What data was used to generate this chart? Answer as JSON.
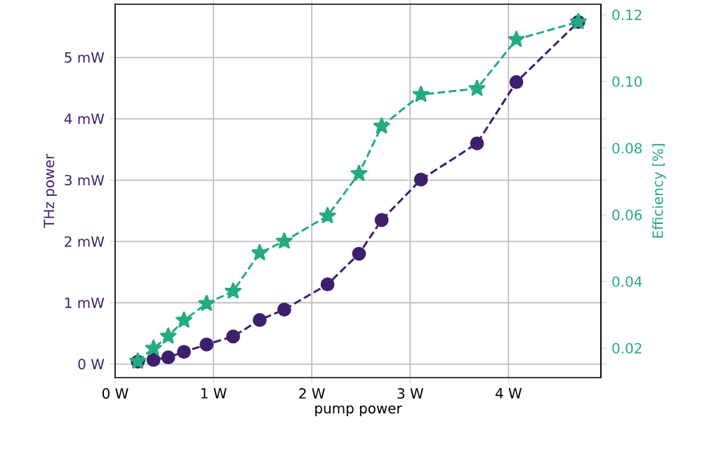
{
  "chart_data": {
    "type": "line",
    "xlabel": "pump power",
    "ylabel": "THz power",
    "y2label": "Efficiency [%]",
    "x": [
      0.23,
      0.39,
      0.54,
      0.7,
      0.93,
      1.2,
      1.47,
      1.72,
      2.16,
      2.48,
      2.71,
      3.11,
      3.68,
      4.08,
      4.71
    ],
    "series": [
      {
        "color": "#3e1f6e",
        "marker": "circle",
        "line_style": "dashed",
        "values": [
          0.04,
          0.07,
          0.11,
          0.2,
          0.32,
          0.45,
          0.72,
          0.89,
          1.3,
          1.8,
          2.35,
          3.01,
          3.6,
          4.6,
          5.58
        ]
      },
      {
        "color": "#25ab81",
        "marker": "star",
        "line_style": "dashed",
        "axis": "y2",
        "values": [
          0.0161,
          0.02,
          0.0236,
          0.0284,
          0.0334,
          0.0371,
          0.0486,
          0.0521,
          0.0597,
          0.0724,
          0.0866,
          0.0961,
          0.0979,
          0.1126,
          0.1179
        ]
      }
    ],
    "xlim": [
      0,
      4.94
    ],
    "ylim": [
      -0.22,
      5.87
    ],
    "y2lim": [
      0.0112,
      0.1232
    ],
    "xticks": [
      {
        "value": 0,
        "label": "0 W"
      },
      {
        "value": 1,
        "label": "1 W"
      },
      {
        "value": 2,
        "label": "2 W"
      },
      {
        "value": 3,
        "label": "3 W"
      },
      {
        "value": 4,
        "label": "4 W"
      }
    ],
    "yticks": [
      {
        "value": 0,
        "label": "0 W"
      },
      {
        "value": 1,
        "label": "1 mW"
      },
      {
        "value": 2,
        "label": "2 mW"
      },
      {
        "value": 3,
        "label": "3 mW"
      },
      {
        "value": 4,
        "label": "4 mW"
      },
      {
        "value": 5,
        "label": "5 mW"
      }
    ],
    "y2ticks": [
      {
        "value": 0.02,
        "label": "0.02"
      },
      {
        "value": 0.04,
        "label": "0.04"
      },
      {
        "value": 0.06,
        "label": "0.06"
      },
      {
        "value": 0.08,
        "label": "0.08"
      },
      {
        "value": 0.1,
        "label": "0.10"
      },
      {
        "value": 0.12,
        "label": "0.12"
      }
    ],
    "grid": true
  }
}
